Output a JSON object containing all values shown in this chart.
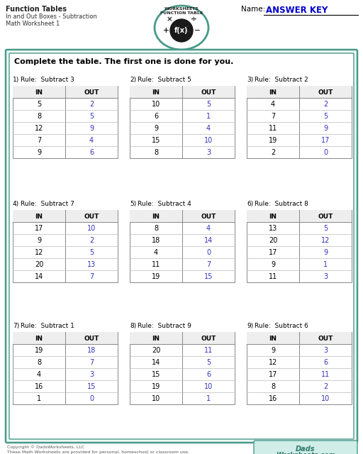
{
  "title_line1": "Function Tables",
  "title_line2": "In and Out Boxes - Subtraction",
  "title_line3": "Math Worksheet 1",
  "name_label": "Name:",
  "answer_key": "ANSWER KEY",
  "instruction": "Complete the table. The first one is done for you.",
  "bg_color": "#ffffff",
  "border_color": "#4a9a8a",
  "in_color": "#000000",
  "out_color": "#3333bb",
  "tables": [
    {
      "number": "1)",
      "rule": "Rule:  Subtract 3",
      "in_vals": [
        5,
        8,
        12,
        7,
        9
      ],
      "out_vals": [
        2,
        5,
        9,
        4,
        6
      ]
    },
    {
      "number": "2)",
      "rule": "Rule:  Subtract 5",
      "in_vals": [
        10,
        6,
        9,
        15,
        8
      ],
      "out_vals": [
        5,
        1,
        4,
        10,
        3
      ]
    },
    {
      "number": "3)",
      "rule": "Rule:  Subtract 2",
      "in_vals": [
        4,
        7,
        11,
        19,
        2
      ],
      "out_vals": [
        2,
        5,
        9,
        17,
        0
      ]
    },
    {
      "number": "4)",
      "rule": "Rule:  Subtract 7",
      "in_vals": [
        17,
        9,
        12,
        20,
        14
      ],
      "out_vals": [
        10,
        2,
        5,
        13,
        7
      ]
    },
    {
      "number": "5)",
      "rule": "Rule:  Subtract 4",
      "in_vals": [
        8,
        18,
        4,
        11,
        19
      ],
      "out_vals": [
        4,
        14,
        0,
        7,
        15
      ]
    },
    {
      "number": "6)",
      "rule": "Rule:  Subtract 8",
      "in_vals": [
        13,
        20,
        17,
        9,
        11
      ],
      "out_vals": [
        5,
        12,
        9,
        1,
        3
      ]
    },
    {
      "number": "7)",
      "rule": "Rule:  Subtract 1",
      "in_vals": [
        19,
        8,
        4,
        16,
        1
      ],
      "out_vals": [
        18,
        7,
        3,
        15,
        0
      ]
    },
    {
      "number": "8)",
      "rule": "Rule:  Subtract 9",
      "in_vals": [
        20,
        14,
        15,
        19,
        10
      ],
      "out_vals": [
        11,
        5,
        6,
        10,
        1
      ]
    },
    {
      "number": "9)",
      "rule": "Rule:  Subtract 6",
      "in_vals": [
        9,
        12,
        17,
        8,
        16
      ],
      "out_vals": [
        3,
        6,
        11,
        2,
        10
      ]
    }
  ],
  "footer_left1": "Copyright © DadsWorksheets, LLC",
  "footer_left2": "These Math Worksheets are provided for personal, homeschool or classroom use.",
  "teal": "#4a9a8a",
  "dark_teal": "#2d7a6a",
  "logo_text1": "FUNCTION TABLE",
  "logo_text2": "WORKSHEETS"
}
